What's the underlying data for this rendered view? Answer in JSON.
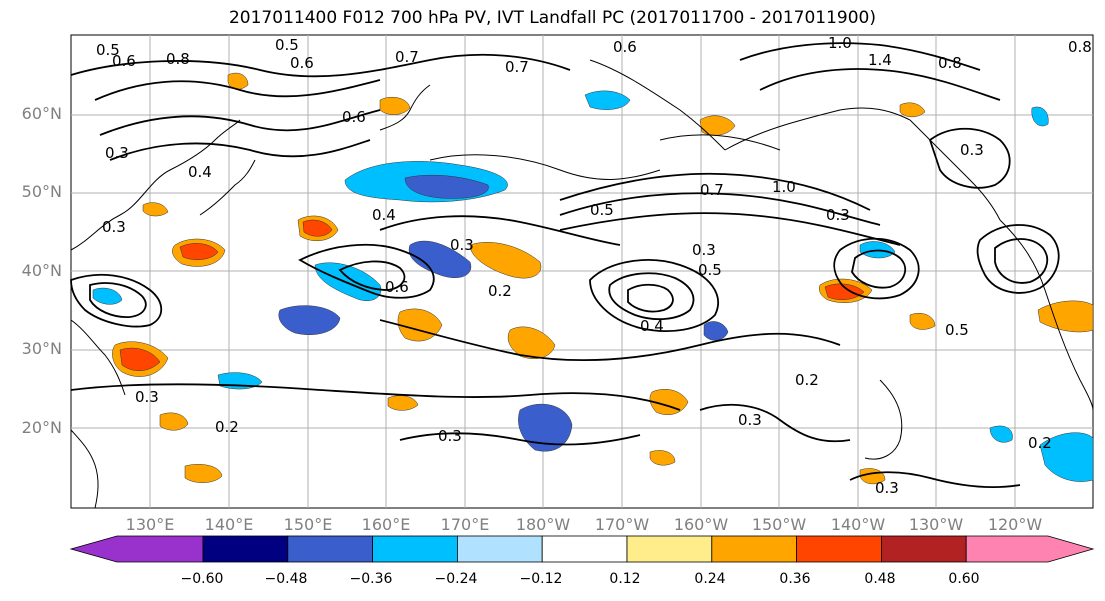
{
  "title": "2017011400 F012 700 hPa PV, IVT Landfall PC (2017011700 - 2017011900)",
  "lat_labels": [
    "60°N",
    "50°N",
    "40°N",
    "30°N",
    "20°N"
  ],
  "lon_labels": [
    "130°E",
    "140°E",
    "150°E",
    "160°E",
    "170°E",
    "180°W",
    "170°W",
    "160°W",
    "150°W",
    "140°W",
    "130°W",
    "120°W"
  ],
  "contour_labels": [
    "0.5",
    "0.6",
    "0.8",
    "0.5",
    "0.6",
    "0.7",
    "0.6",
    "1.0",
    "1.4",
    "0.8",
    "0.8",
    "0.7",
    "0.6",
    "0.3",
    "0.4",
    "0.3",
    "0.4",
    "0.3",
    "0.5",
    "0.7",
    "1.0",
    "0.5",
    "0.3",
    "0.2",
    "0.6",
    "0.3",
    "0.5",
    "0.4",
    "0.3",
    "0.2",
    "0.3",
    "0.3",
    "0.2",
    "0.2",
    "0.3",
    "0.3"
  ],
  "colorbar": {
    "ticks": [
      "−0.60",
      "−0.48",
      "−0.36",
      "−0.24",
      "−0.12",
      "0.12",
      "0.24",
      "0.36",
      "0.48",
      "0.60"
    ],
    "colors": [
      "#9932cc",
      "#000080",
      "#3a5fcd",
      "#00bfff",
      "#b0e2ff",
      "#ffffff",
      "#ffec8b",
      "#ffa500",
      "#ff4500",
      "#b22222",
      "#ff83b0"
    ]
  }
}
